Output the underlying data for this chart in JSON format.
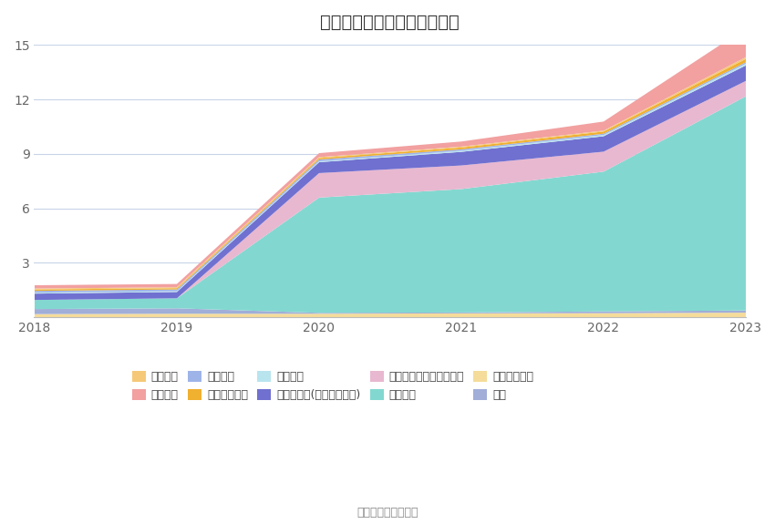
{
  "title": "历年主要负债堆积图（亿元）",
  "source_text": "数据来源：恒生聚源",
  "years": [
    2018,
    2019,
    2020,
    2021,
    2022,
    2023
  ],
  "series_stack_order": [
    {
      "name": "长期递延收益",
      "color": "#F5DC9A",
      "values": [
        0.2,
        0.22,
        0.22,
        0.24,
        0.25,
        0.28
      ]
    },
    {
      "name": "其它",
      "color": "#A0AED8",
      "values": [
        0.28,
        0.3,
        0.05,
        0.05,
        0.1,
        0.12
      ]
    },
    {
      "name": "租赁负债",
      "color": "#82D8D0",
      "values": [
        0.5,
        0.55,
        6.35,
        6.8,
        7.7,
        11.8
      ]
    },
    {
      "name": "一年内到期的非流动负债",
      "color": "#E8B8D0",
      "values": [
        0.0,
        0.0,
        1.35,
        1.3,
        1.1,
        0.85
      ]
    },
    {
      "name": "其他应付款(含利息和股利)",
      "color": "#7070D0",
      "values": [
        0.35,
        0.35,
        0.6,
        0.75,
        0.85,
        0.85
      ]
    },
    {
      "name": "应交税费",
      "color": "#B8E4EE",
      "values": [
        0.05,
        0.04,
        0.05,
        0.06,
        0.07,
        0.1
      ]
    },
    {
      "name": "预收款项",
      "color": "#9EB4E8",
      "values": [
        0.1,
        0.1,
        0.1,
        0.08,
        0.07,
        0.08
      ]
    },
    {
      "name": "应付职工薪酬",
      "color": "#F0B030",
      "values": [
        0.08,
        0.07,
        0.08,
        0.1,
        0.12,
        0.18
      ]
    },
    {
      "name": "短期借款",
      "color": "#F5C978",
      "values": [
        0.05,
        0.05,
        0.05,
        0.05,
        0.05,
        0.1
      ]
    },
    {
      "name": "应付账款",
      "color": "#F2A0A0",
      "values": [
        0.18,
        0.18,
        0.22,
        0.28,
        0.5,
        1.6
      ]
    }
  ],
  "legend_order": [
    {
      "name": "短期借款",
      "color": "#F5C978"
    },
    {
      "name": "应付账款",
      "color": "#F2A0A0"
    },
    {
      "name": "预收款项",
      "color": "#9EB4E8"
    },
    {
      "name": "应付职工薪酬",
      "color": "#F0B030"
    },
    {
      "name": "应交税费",
      "color": "#B8E4EE"
    },
    {
      "name": "其他应付款(含利息和股利)",
      "color": "#7070D0"
    },
    {
      "name": "一年内到期的非流动负债",
      "color": "#E8B8D0"
    },
    {
      "name": "租赁负债",
      "color": "#82D8D0"
    },
    {
      "name": "长期递延收益",
      "color": "#F5DC9A"
    },
    {
      "name": "其它",
      "color": "#A0AED8"
    }
  ],
  "ylim": [
    0,
    15
  ],
  "yticks": [
    0,
    3,
    6,
    9,
    12,
    15
  ],
  "background_color": "#FFFFFF",
  "grid_color": "#C8D4E8",
  "title_fontsize": 14,
  "tick_fontsize": 10,
  "legend_fontsize": 9
}
